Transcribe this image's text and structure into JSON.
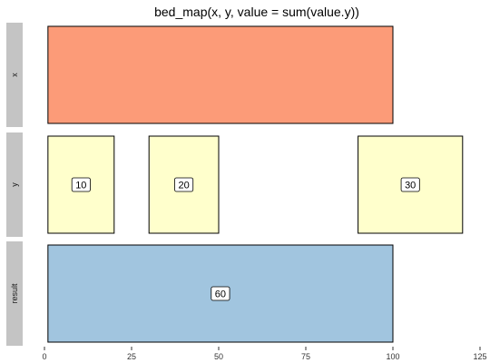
{
  "chart_data": {
    "type": "bar",
    "title": "bed_map(x, y, value = sum(value.y))",
    "xlabel": "",
    "ylabel": "",
    "xlim": [
      0,
      125
    ],
    "x_ticks": [
      {
        "value": 0,
        "label": "0"
      },
      {
        "value": 25,
        "label": "25"
      },
      {
        "value": 50,
        "label": "50"
      },
      {
        "value": 75,
        "label": "75"
      },
      {
        "value": 100,
        "label": "100"
      },
      {
        "value": 125,
        "label": "125"
      }
    ],
    "grid": false,
    "legend": "none",
    "facets": [
      {
        "name": "x",
        "fill": "#fc9b78",
        "intervals": [
          {
            "start": 1,
            "end": 100,
            "label": ""
          }
        ]
      },
      {
        "name": "y",
        "fill": "#ffffcc",
        "intervals": [
          {
            "start": 1,
            "end": 20,
            "label": "10"
          },
          {
            "start": 30,
            "end": 50,
            "label": "20"
          },
          {
            "start": 90,
            "end": 120,
            "label": "30"
          }
        ]
      },
      {
        "name": "result",
        "fill": "#a1c5df",
        "intervals": [
          {
            "start": 1,
            "end": 100,
            "label": "60"
          }
        ]
      }
    ]
  }
}
